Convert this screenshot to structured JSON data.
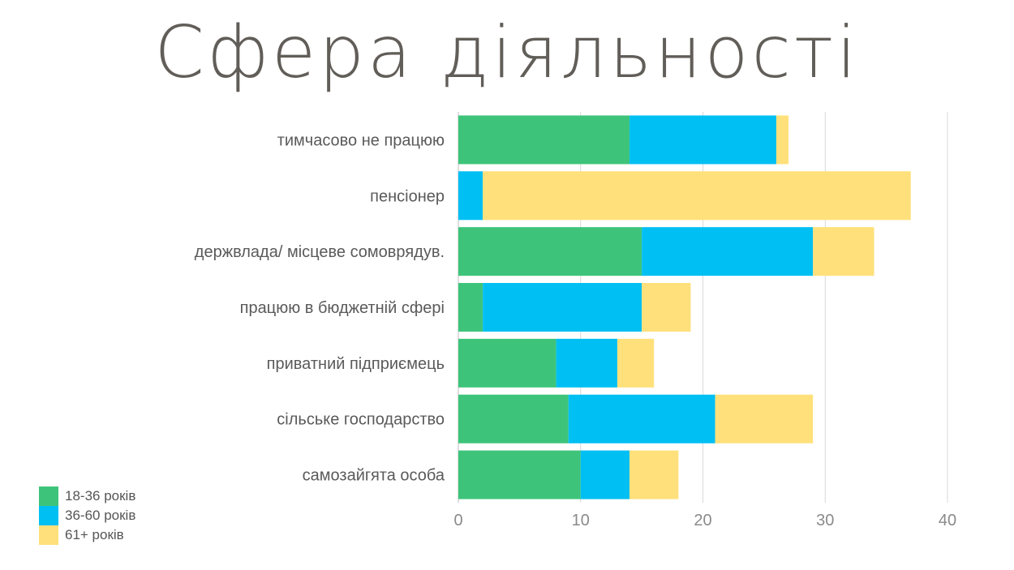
{
  "title": "Сфера діяльності",
  "chart_data": {
    "type": "bar",
    "orientation": "horizontal",
    "stacked": true,
    "categories": [
      "тимчасово не працюю",
      "пенсіонер",
      "держвлада/ місцеве сомоврядув.",
      "працюю в бюджетній сфері",
      "приватний підприємець",
      "сільське господарство",
      "самозайгята особа"
    ],
    "series": [
      {
        "name": "18-36 років",
        "color": "#3ec47a",
        "values": [
          14,
          0,
          15,
          2,
          8,
          9,
          10
        ]
      },
      {
        "name": "36-60 років",
        "color": "#00bff3",
        "values": [
          12,
          2,
          14,
          13,
          5,
          12,
          4
        ]
      },
      {
        "name": "61+ років",
        "color": "#ffe07a",
        "values": [
          1,
          35,
          5,
          4,
          3,
          8,
          4
        ]
      }
    ],
    "xlim": [
      0,
      40
    ],
    "xticks": [
      0,
      10,
      20,
      30,
      40
    ],
    "grid": "vertical",
    "legend_position": "bottom-left"
  }
}
